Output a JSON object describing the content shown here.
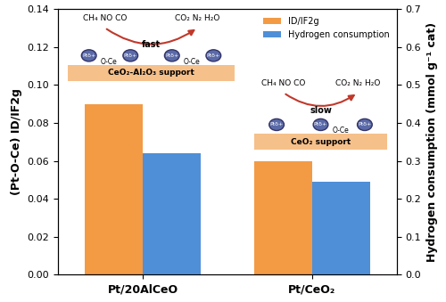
{
  "chart_data": {
    "type": "bar",
    "categories": [
      "Pt/20AlCeO",
      "Pt/CeO₂"
    ],
    "ylabel": "(Pt-O-Ce) ID/IF2g",
    "y2label": "Hydrogen consumption (mmol g⁻¹ cat)",
    "ylim": [
      0,
      0.14
    ],
    "yticks": [
      {
        "value": 0,
        "label": "0.00"
      },
      {
        "value": 0.02,
        "label": "0.02"
      },
      {
        "value": 0.04,
        "label": "0.04"
      },
      {
        "value": 0.06,
        "label": "0.06"
      },
      {
        "value": 0.08,
        "label": "0.08"
      },
      {
        "value": 0.1,
        "label": "0.10"
      },
      {
        "value": 0.12,
        "label": "0.12"
      },
      {
        "value": 0.14,
        "label": "0.14"
      }
    ],
    "y2lim": [
      0,
      0.7
    ],
    "y2ticks": [
      {
        "value": 0,
        "label": "0.0"
      },
      {
        "value": 0.1,
        "label": "0.1"
      },
      {
        "value": 0.2,
        "label": "0.2"
      },
      {
        "value": 0.3,
        "label": "0.3"
      },
      {
        "value": 0.4,
        "label": "0.4"
      },
      {
        "value": 0.5,
        "label": "0.5"
      },
      {
        "value": 0.6,
        "label": "0.6"
      },
      {
        "value": 0.7,
        "label": "0.7"
      }
    ],
    "series": [
      {
        "name": "ID/IF2g",
        "color": "#f39a45",
        "values": [
          0.09,
          0.06
        ]
      },
      {
        "name": "Hydrogen consumption",
        "color": "#4f8fd8",
        "values": [
          0.32,
          0.245
        ],
        "axis": "y2"
      }
    ],
    "legend": "upper right",
    "annotations": [
      {
        "reactants": "CH₄ NO CO",
        "products": "CO₂ N₂ H₂O",
        "speed": "fast",
        "support": "CeO₂-Al₂O₃ support",
        "site": "Ptδ+",
        "bond": "O-Ce"
      },
      {
        "reactants": "CH₄ NO CO",
        "products": "CO₂ N₂ H₂O",
        "speed": "slow",
        "support": "CeO₂ support",
        "site": "Ptδ+",
        "bond": "O-Ce"
      }
    ]
  }
}
